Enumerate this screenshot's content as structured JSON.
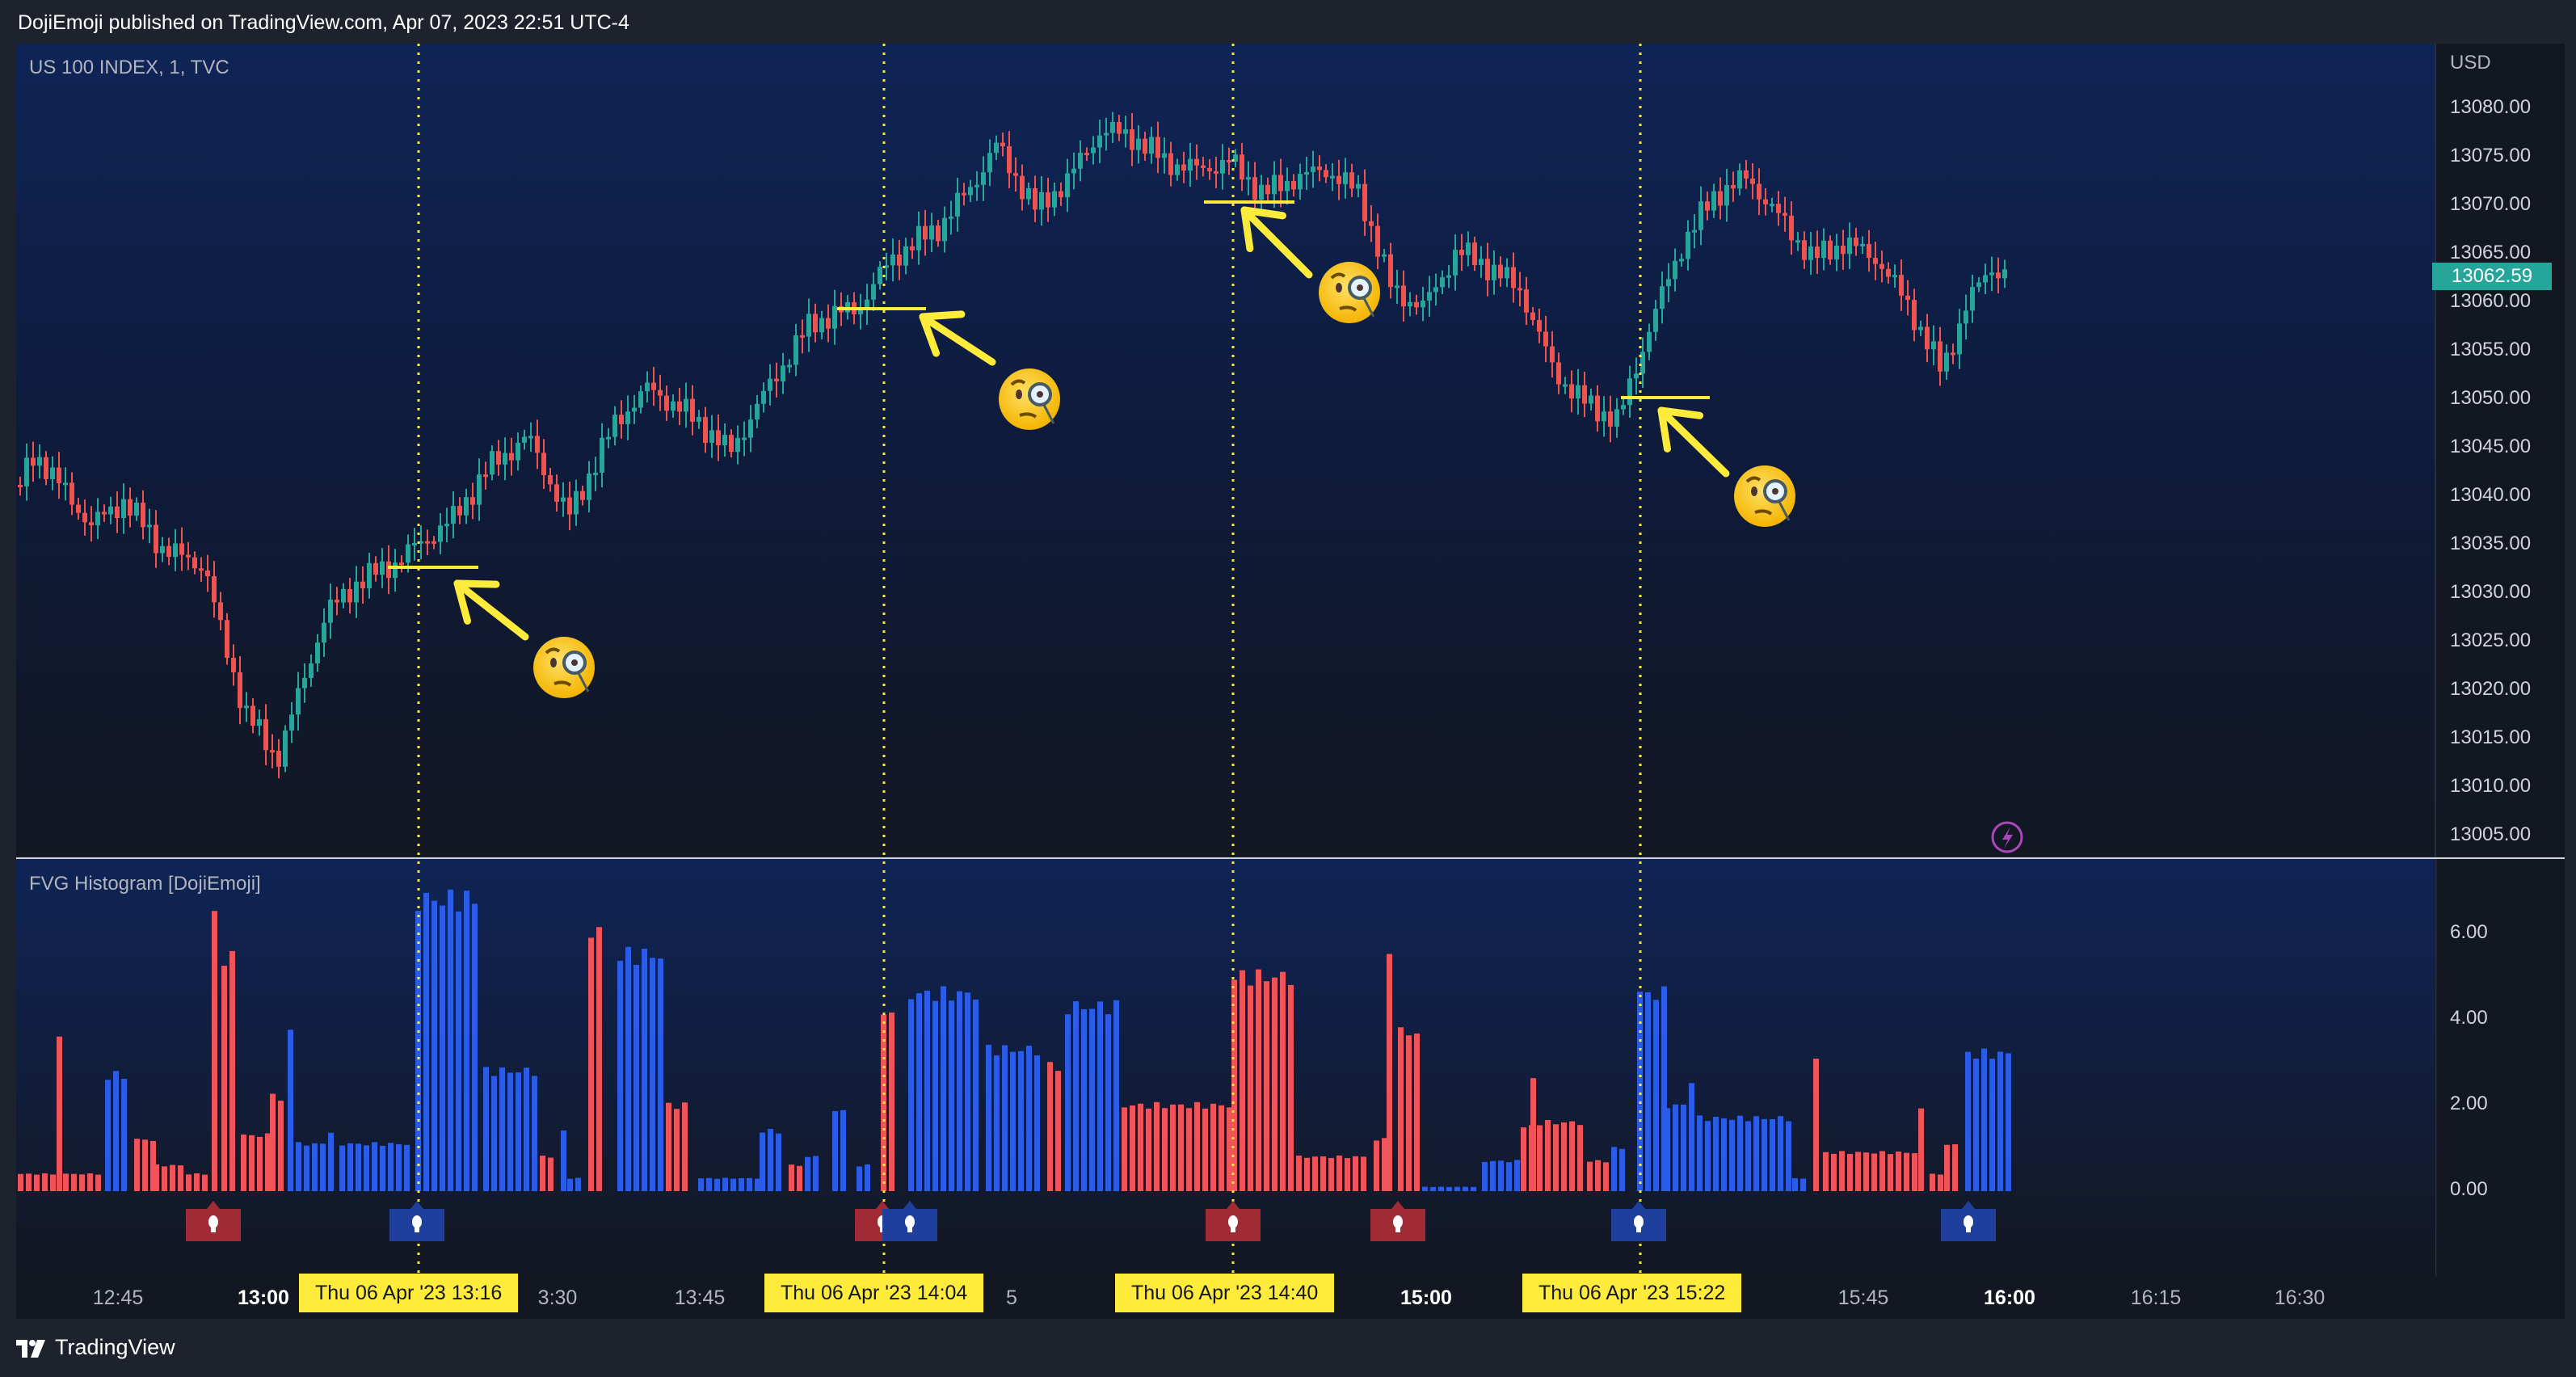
{
  "header": {
    "text": "DojiEmoji published on TradingView.com, Apr 07, 2023 22:51 UTC-4"
  },
  "footer": {
    "brand": "TradingView"
  },
  "main_pane": {
    "symbol_label": "US 100 INDEX, 1, TVC",
    "currency": "USD",
    "current_price": "13062.59",
    "price_labels": [
      "13080.00",
      "13075.00",
      "13070.00",
      "13065.00",
      "13060.00",
      "13055.00",
      "13050.00",
      "13045.00",
      "13040.00",
      "13035.00",
      "13030.00",
      "13025.00",
      "13020.00",
      "13015.00",
      "13010.00",
      "13005.00"
    ]
  },
  "indicator_pane": {
    "label": "FVG Histogram [DojiEmoji]",
    "value_labels": [
      "6.00",
      "4.00",
      "2.00",
      "0.00"
    ]
  },
  "time_axis": {
    "labels": [
      {
        "text": "12:45",
        "bold": false
      },
      {
        "text": "13:00",
        "bold": true
      },
      {
        "text": "3:30",
        "bold": false
      },
      {
        "text": "13:45",
        "bold": false
      },
      {
        "text": "5",
        "bold": false
      },
      {
        "text": "15:00",
        "bold": true
      },
      {
        "text": "15:45",
        "bold": false
      },
      {
        "text": "16:00",
        "bold": true
      },
      {
        "text": "16:15",
        "bold": false
      },
      {
        "text": "16:30",
        "bold": false
      }
    ],
    "cursor_tags": [
      "Thu 06 Apr '23   13:16",
      "Thu 06 Apr '23   14:04",
      "Thu 06 Apr '23   14:40",
      "Thu 06 Apr '23   15:22"
    ]
  },
  "colors": {
    "up": "#26a69a",
    "down": "#ef5350",
    "bull_fvg": "#2962ff",
    "bear_fvg": "#f23645",
    "marker": "#ffeb3b"
  },
  "icons": [
    "tradingview-logo-icon",
    "monocle-face-emoji-icon",
    "arrow-annotation-icon",
    "bulb-marker-icon",
    "lightning-alert-icon"
  ]
}
